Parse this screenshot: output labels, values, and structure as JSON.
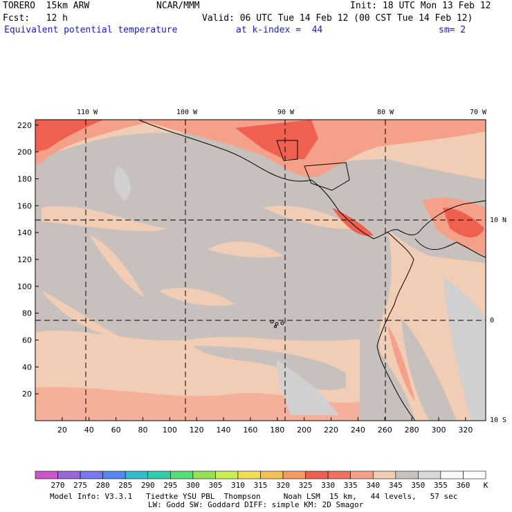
{
  "header": {
    "model": "TORERO  15km ARW",
    "center": "NCAR/MMM",
    "init": "Init: 18 UTC Mon 13 Feb 12",
    "fcst": "Fcst:   12 h",
    "valid": "Valid: 06 UTC Tue 14 Feb 12 (00 CST Tue 14 Feb 12)",
    "field": "Equivalent potential temperature",
    "level": "at k-index =  44",
    "smoothing": "sm= 2"
  },
  "map": {
    "lon_labels": [
      "110 W",
      "100 W",
      "90 W",
      "80 W",
      "70 W"
    ],
    "lat_labels": [
      "10 N",
      "0",
      "10 S"
    ],
    "y_ticks": [
      "20",
      "40",
      "60",
      "80",
      "100",
      "120",
      "140",
      "160",
      "180",
      "200",
      "220"
    ],
    "x_ticks": [
      "20",
      "40",
      "60",
      "80",
      "100",
      "120",
      "140",
      "160",
      "180",
      "200",
      "220",
      "240",
      "260",
      "280",
      "300",
      "320"
    ]
  },
  "colorbar": {
    "labels": [
      "270",
      "275",
      "280",
      "285",
      "290",
      "295",
      "300",
      "305",
      "310",
      "315",
      "320",
      "325",
      "330",
      "335",
      "340",
      "345",
      "350",
      "355",
      "360"
    ],
    "unit": "K",
    "colors": [
      "#cc55cc",
      "#9966d8",
      "#7777ee",
      "#5588ee",
      "#33bbcc",
      "#33ccaa",
      "#55dd77",
      "#99e055",
      "#ccee55",
      "#eedd55",
      "#f5c055",
      "#f59a60",
      "#f06050",
      "#f07060",
      "#f5a088",
      "#f2cdb5",
      "#c8c0bc",
      "#d8d8d8",
      "#f8f8f8",
      "#ffffff"
    ]
  },
  "footer": {
    "line1": "Model Info: V3.3.1   Tiedtke YSU PBL  Thompson     Noah LSM  15 km,   44 levels,   57 sec",
    "line2": "LW: Godd SW: Goddard DIFF: simple KM: 2D Smagor"
  }
}
